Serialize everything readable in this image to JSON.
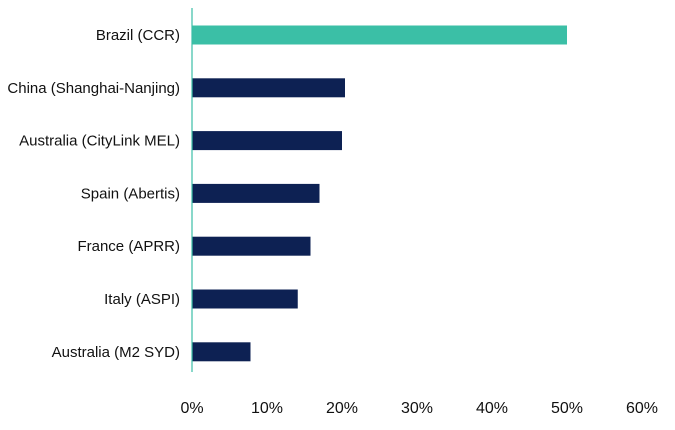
{
  "chart_data": {
    "type": "bar",
    "orientation": "horizontal",
    "title": "",
    "xlabel": "",
    "ylabel": "",
    "categories": [
      "Brazil (CCR)",
      "China (Shanghai-Nanjing)",
      "Australia (CityLink MEL)",
      "Spain (Abertis)",
      "France (APRR)",
      "Italy (ASPI)",
      "Australia (M2 SYD)"
    ],
    "values": [
      50,
      20.4,
      20,
      17,
      15.8,
      14.1,
      7.8
    ],
    "xlim": [
      0,
      60
    ],
    "xticks": [
      0,
      10,
      20,
      30,
      40,
      50,
      60
    ],
    "xtick_labels": [
      "0%",
      "10%",
      "20%",
      "30%",
      "40%",
      "50%",
      "60%"
    ],
    "grid": false,
    "legend": "none",
    "colors": {
      "highlight": "#3bbfa6",
      "default": "#0d2153",
      "axis": "#3bbfa6"
    },
    "highlight_index": 0
  }
}
